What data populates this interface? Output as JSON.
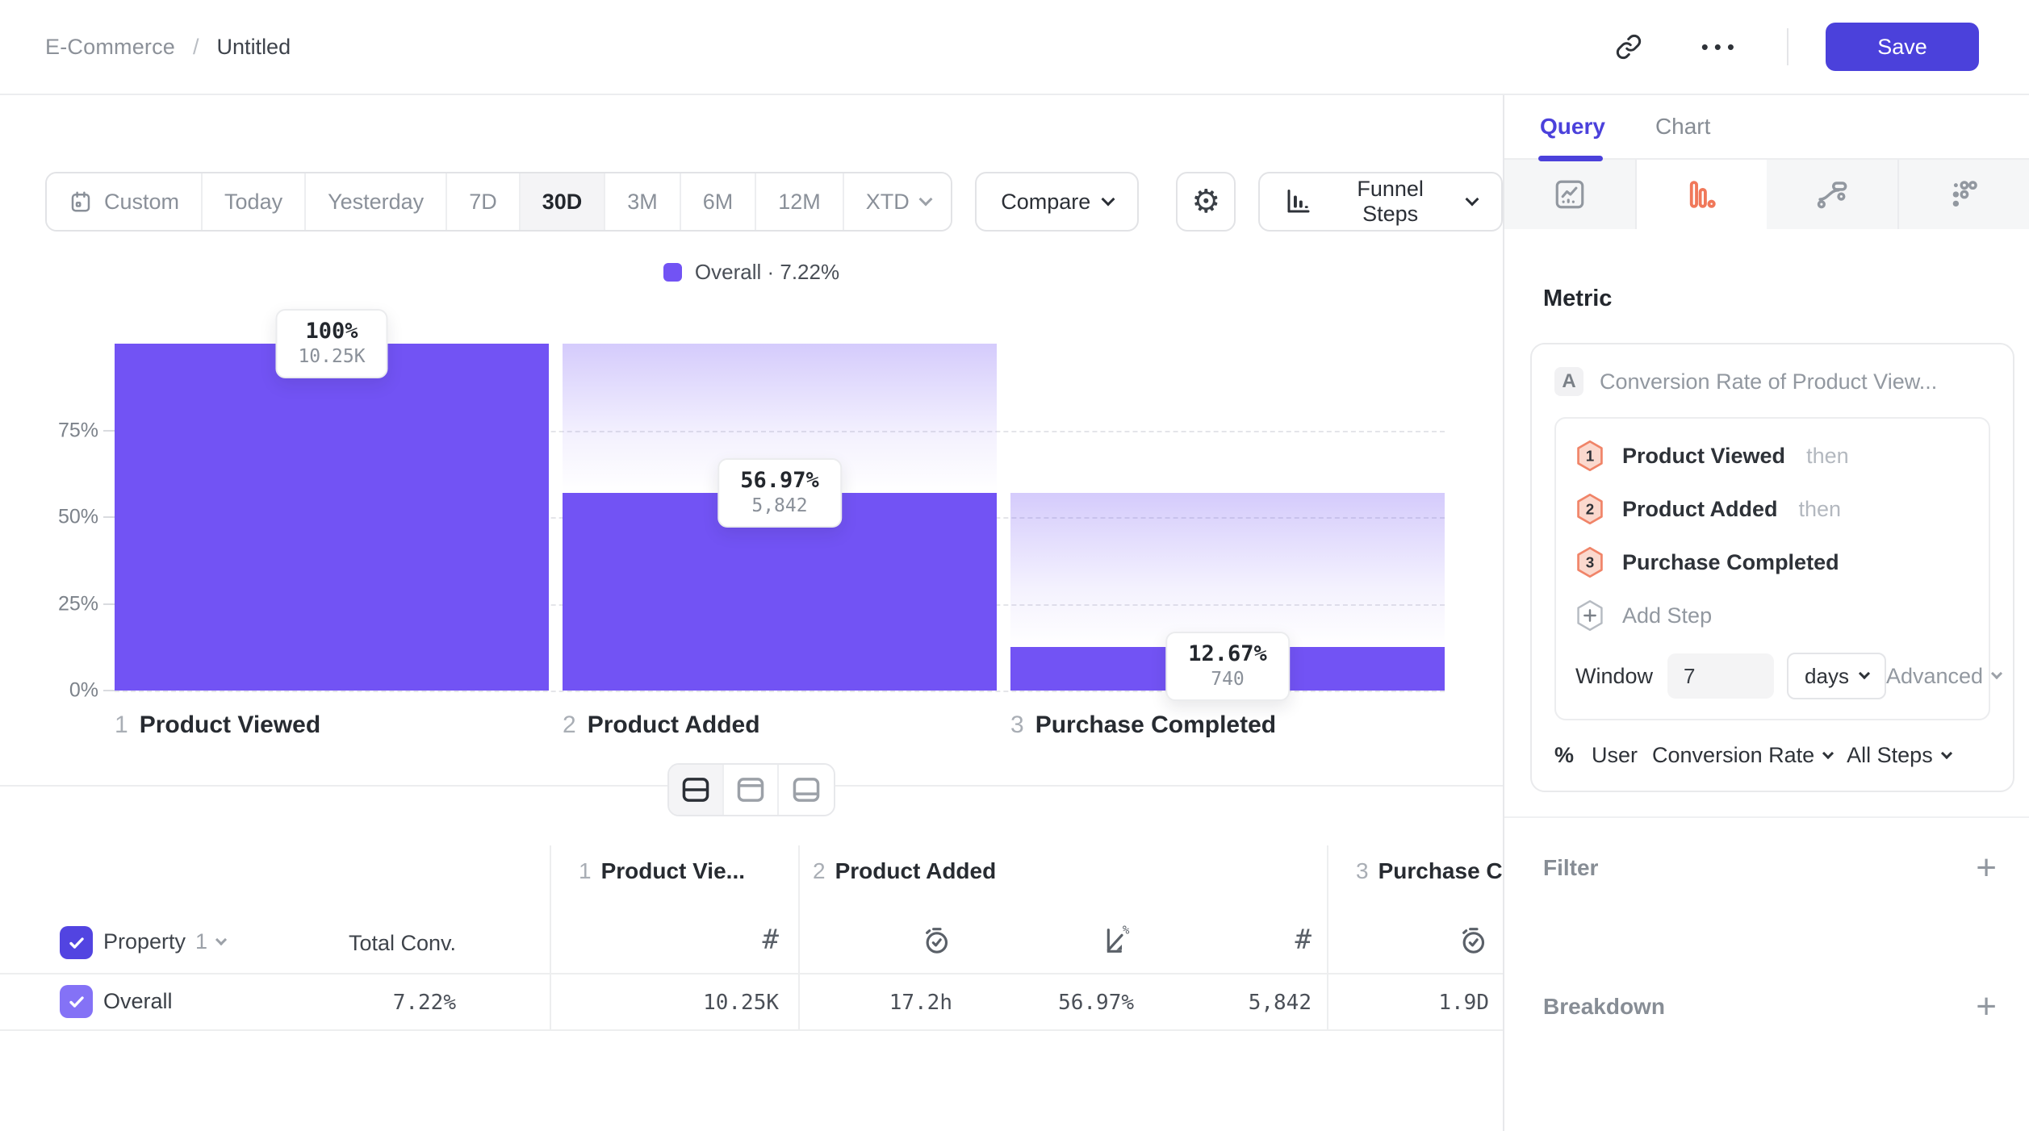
{
  "header": {
    "breadcrumb_parent": "E-Commerce",
    "breadcrumb_sep": "/",
    "breadcrumb_current": "Untitled",
    "ellipsis": "•••",
    "save_label": "Save"
  },
  "toolbar": {
    "ranges": [
      {
        "label": "Custom"
      },
      {
        "label": "Today"
      },
      {
        "label": "Yesterday"
      },
      {
        "label": "7D"
      },
      {
        "label": "30D"
      },
      {
        "label": "3M"
      },
      {
        "label": "6M"
      },
      {
        "label": "12M"
      },
      {
        "label": "XTD"
      }
    ],
    "active_range": "30D",
    "compare_label": "Compare",
    "chart_type_label": "Funnel Steps"
  },
  "legend": {
    "text": "Overall · 7.22%"
  },
  "chart_data": {
    "type": "funnel",
    "title": "",
    "categories": [
      "Product Viewed",
      "Product Added",
      "Purchase Completed"
    ],
    "series": [
      {
        "name": "Overall",
        "conversion_pct": [
          100,
          56.97,
          12.67
        ],
        "counts": [
          10250,
          5842,
          740
        ]
      }
    ],
    "value_labels": [
      "100%",
      "56.97%",
      "12.67%"
    ],
    "count_labels": [
      "10.25K",
      "5,842",
      "740"
    ],
    "overall_conversion": "7.22%",
    "ylim": [
      0,
      100
    ],
    "y_ticks": [
      "75%",
      "50%",
      "25%",
      "0%"
    ],
    "grid": "dashed-horizontal",
    "legend_position": "top-center"
  },
  "funnel": {
    "steps": [
      {
        "num": "1",
        "name": "Product Viewed",
        "pct": "100%",
        "count": "10.25K"
      },
      {
        "num": "2",
        "name": "Product Added",
        "pct": "56.97%",
        "count": "5,842"
      },
      {
        "num": "3",
        "name": "Purchase Completed",
        "pct": "12.67%",
        "count": "740"
      }
    ]
  },
  "table": {
    "header": {
      "property": "Property",
      "property_num": "1",
      "total": "Total Conv."
    },
    "groups": [
      {
        "num": "1",
        "name": "Product Vie..."
      },
      {
        "num": "2",
        "name": "Product Added"
      },
      {
        "num": "3",
        "name": "Purchase C"
      }
    ],
    "row": {
      "label": "Overall",
      "total": "7.22%",
      "values": [
        "10.25K",
        "17.2h",
        "56.97%",
        "5,842",
        "1.9D"
      ]
    }
  },
  "panel": {
    "tabs": {
      "query": "Query",
      "chart": "Chart"
    },
    "active_tab": "Query",
    "chart_types": [
      "line-chart",
      "funnel-bars",
      "flow",
      "grid-dots"
    ],
    "active_chart_type": "funnel-bars",
    "metric_heading": "Metric",
    "metric": {
      "badge": "A",
      "title": "Conversion Rate of Product View...",
      "steps": [
        {
          "num": "1",
          "name": "Product Viewed",
          "suffix": "then"
        },
        {
          "num": "2",
          "name": "Product Added",
          "suffix": "then"
        },
        {
          "num": "3",
          "name": "Purchase Completed",
          "suffix": ""
        }
      ],
      "add_step": "Add Step",
      "window": {
        "label": "Window",
        "value": "7",
        "unit": "days",
        "advanced": "Advanced"
      },
      "footer": {
        "prefix": "%",
        "entity": "User",
        "measure": "Conversion Rate",
        "scope": "All Steps"
      }
    },
    "filter_label": "Filter",
    "breakdown_label": "Breakdown",
    "plus": "+"
  },
  "colors": {
    "accent": "#4B41DB",
    "bar": "#7253F4",
    "active_chart_type_icon": "#F0785A",
    "step_badge_fill": "#FBD9CE",
    "step_badge_border": "#F08468",
    "row_checkbox": "#8472F6"
  }
}
